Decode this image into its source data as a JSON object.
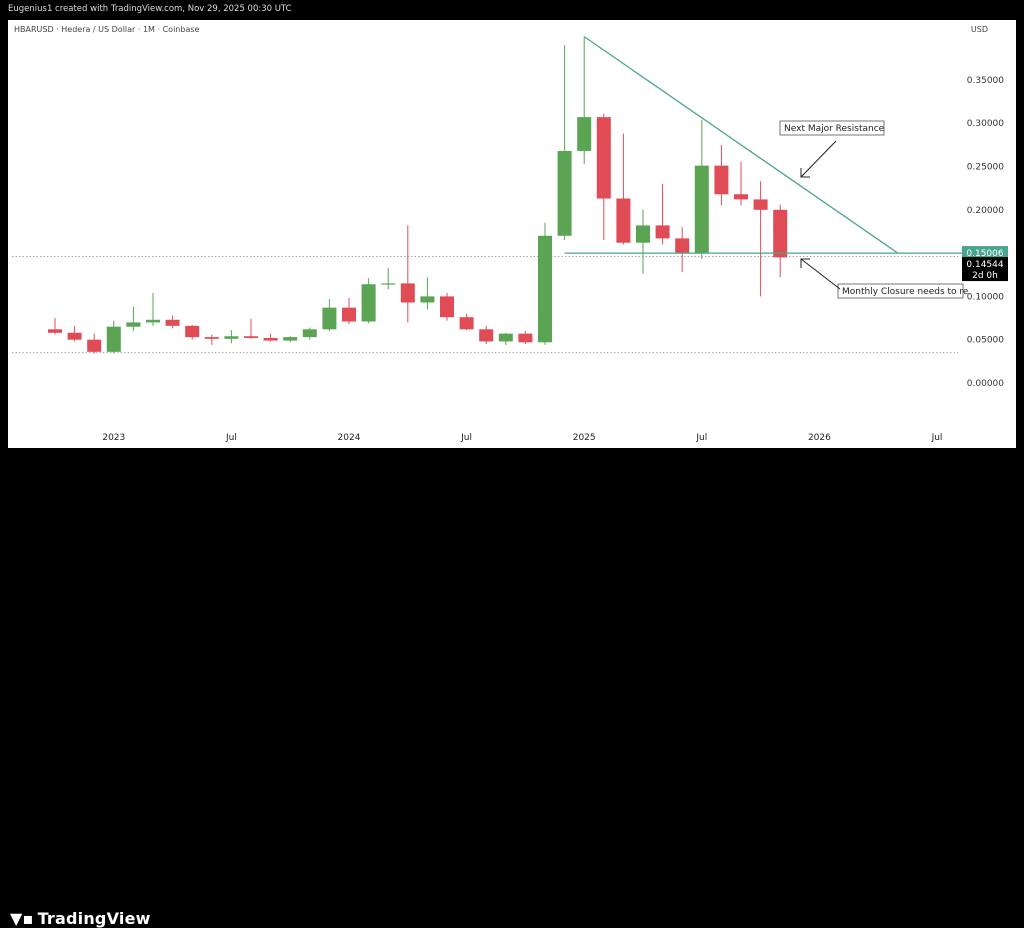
{
  "header": {
    "text": "Eugenius1 created with TradingView.com, Nov 29, 2025 00:30 UTC"
  },
  "symbol": "HBARUSD · Hedera / US Dollar · 1M · Coinbase",
  "currency": "USD",
  "brand": "TradingView",
  "colors": {
    "up": "#5aa454",
    "down": "#e04c56",
    "trend": "#4aa58f",
    "price_badge": "#000000"
  },
  "price_badges": [
    {
      "label": "0.15006",
      "value": 0.15006,
      "bg": "#4aa58f"
    },
    {
      "label": "0.14544",
      "value": 0.14544,
      "bg": "#000000",
      "sub": "2d 0h"
    }
  ],
  "annotations": [
    {
      "text": "Next Major Resistance"
    },
    {
      "text": "Monthly Closure needs to re"
    }
  ],
  "chart_data": {
    "type": "candlestick",
    "y_ticks": [
      "0.35000",
      "0.30000",
      "0.25000",
      "0.20000",
      "0.15000",
      "0.10000",
      "0.05000",
      "0.00000"
    ],
    "y_values": [
      0.35,
      0.3,
      0.25,
      0.2,
      0.15,
      0.1,
      0.05,
      0.0
    ],
    "ylim": [
      -0.04,
      0.4
    ],
    "x_ticks": [
      {
        "label": "2023",
        "index": 3
      },
      {
        "label": "Jul",
        "index": 9
      },
      {
        "label": "2024",
        "index": 15
      },
      {
        "label": "Jul",
        "index": 21
      },
      {
        "label": "2025",
        "index": 27
      },
      {
        "label": "Jul",
        "index": 33
      },
      {
        "label": "2026",
        "index": 39
      },
      {
        "label": "Jul",
        "index": 45
      }
    ],
    "candles": [
      {
        "o": 0.062,
        "h": 0.075,
        "l": 0.056,
        "c": 0.058
      },
      {
        "o": 0.058,
        "h": 0.066,
        "l": 0.048,
        "c": 0.05
      },
      {
        "o": 0.05,
        "h": 0.057,
        "l": 0.034,
        "c": 0.036
      },
      {
        "o": 0.036,
        "h": 0.072,
        "l": 0.034,
        "c": 0.065
      },
      {
        "o": 0.065,
        "h": 0.088,
        "l": 0.06,
        "c": 0.07
      },
      {
        "o": 0.07,
        "h": 0.104,
        "l": 0.066,
        "c": 0.073
      },
      {
        "o": 0.073,
        "h": 0.078,
        "l": 0.063,
        "c": 0.066
      },
      {
        "o": 0.066,
        "h": 0.067,
        "l": 0.05,
        "c": 0.053
      },
      {
        "o": 0.053,
        "h": 0.056,
        "l": 0.044,
        "c": 0.051
      },
      {
        "o": 0.051,
        "h": 0.061,
        "l": 0.046,
        "c": 0.054
      },
      {
        "o": 0.054,
        "h": 0.074,
        "l": 0.051,
        "c": 0.052
      },
      {
        "o": 0.052,
        "h": 0.057,
        "l": 0.048,
        "c": 0.049
      },
      {
        "o": 0.049,
        "h": 0.054,
        "l": 0.047,
        "c": 0.053
      },
      {
        "o": 0.053,
        "h": 0.064,
        "l": 0.05,
        "c": 0.062
      },
      {
        "o": 0.062,
        "h": 0.097,
        "l": 0.06,
        "c": 0.087
      },
      {
        "o": 0.087,
        "h": 0.098,
        "l": 0.068,
        "c": 0.071
      },
      {
        "o": 0.071,
        "h": 0.121,
        "l": 0.069,
        "c": 0.114
      },
      {
        "o": 0.114,
        "h": 0.133,
        "l": 0.108,
        "c": 0.115
      },
      {
        "o": 0.115,
        "h": 0.182,
        "l": 0.07,
        "c": 0.093
      },
      {
        "o": 0.093,
        "h": 0.122,
        "l": 0.085,
        "c": 0.1
      },
      {
        "o": 0.1,
        "h": 0.104,
        "l": 0.072,
        "c": 0.076
      },
      {
        "o": 0.076,
        "h": 0.08,
        "l": 0.061,
        "c": 0.062
      },
      {
        "o": 0.062,
        "h": 0.066,
        "l": 0.045,
        "c": 0.048
      },
      {
        "o": 0.048,
        "h": 0.058,
        "l": 0.044,
        "c": 0.057
      },
      {
        "o": 0.057,
        "h": 0.06,
        "l": 0.045,
        "c": 0.047
      },
      {
        "o": 0.047,
        "h": 0.185,
        "l": 0.044,
        "c": 0.17
      },
      {
        "o": 0.17,
        "h": 0.39,
        "l": 0.165,
        "c": 0.268
      },
      {
        "o": 0.268,
        "h": 0.4,
        "l": 0.253,
        "c": 0.307
      },
      {
        "o": 0.307,
        "h": 0.311,
        "l": 0.165,
        "c": 0.213
      },
      {
        "o": 0.213,
        "h": 0.288,
        "l": 0.16,
        "c": 0.162
      },
      {
        "o": 0.162,
        "h": 0.2,
        "l": 0.126,
        "c": 0.182
      },
      {
        "o": 0.182,
        "h": 0.23,
        "l": 0.16,
        "c": 0.167
      },
      {
        "o": 0.167,
        "h": 0.18,
        "l": 0.128,
        "c": 0.15
      },
      {
        "o": 0.15,
        "h": 0.304,
        "l": 0.143,
        "c": 0.251
      },
      {
        "o": 0.251,
        "h": 0.275,
        "l": 0.205,
        "c": 0.218
      },
      {
        "o": 0.218,
        "h": 0.255,
        "l": 0.205,
        "c": 0.212
      },
      {
        "o": 0.212,
        "h": 0.233,
        "l": 0.1,
        "c": 0.2
      },
      {
        "o": 0.2,
        "h": 0.206,
        "l": 0.122,
        "c": 0.145
      }
    ],
    "resistance_line": {
      "from_index": 27,
      "from_value": 0.4,
      "to_index": 43,
      "to_value": 0.15
    },
    "support_line": {
      "from_index": 26,
      "to_index": 49,
      "value": 0.15
    },
    "reference_lines": [
      0.146,
      0.035
    ],
    "legend": "none",
    "grid": false
  }
}
